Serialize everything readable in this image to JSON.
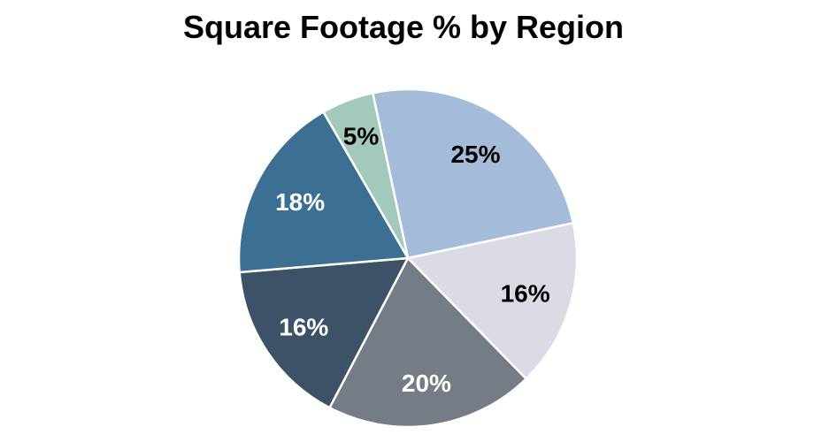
{
  "chart_data": {
    "type": "pie",
    "title": "Square Footage % by Region",
    "unit": "%",
    "direction": "clockwise",
    "start_angle_deg": -12,
    "legend": "none",
    "background_color": "#ffffff",
    "title_color": "#000000",
    "slice_border_color": "#ffffff",
    "slices": [
      {
        "label": "25%",
        "value": 25,
        "color": "#a4bcd9",
        "label_color": "#000000",
        "label_radius_frac": 0.735
      },
      {
        "label": "16%",
        "value": 16,
        "color": "#dadbe4",
        "label_color": "#000000",
        "label_radius_frac": 0.725
      },
      {
        "label": "20%",
        "value": 20,
        "color": "#767c85",
        "label_color": "#ffffff",
        "label_radius_frac": 0.75
      },
      {
        "label": "16%",
        "value": 16,
        "color": "#3d5266",
        "label_color": "#ffffff",
        "label_radius_frac": 0.74
      },
      {
        "label": "18%",
        "value": 18,
        "color": "#3b7092",
        "label_color": "#ffffff",
        "label_radius_frac": 0.72
      },
      {
        "label": "5%",
        "value": 5,
        "color": "#a2c9ba",
        "label_color": "#000000",
        "label_radius_frac": 0.775
      }
    ]
  }
}
